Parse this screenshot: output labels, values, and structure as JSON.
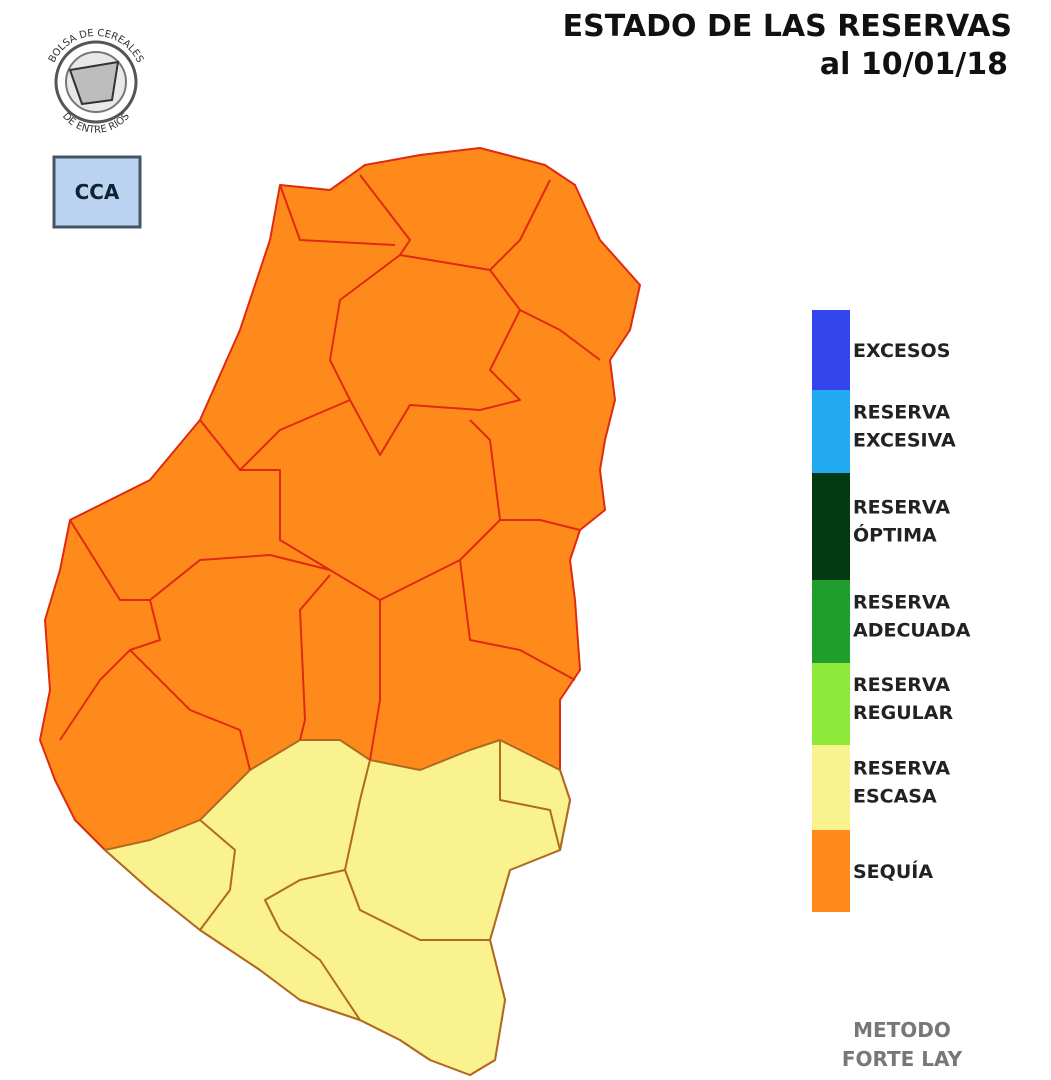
{
  "header": {
    "title": "ESTADO DE LAS RESERVAS",
    "date": "al 10/01/18"
  },
  "logos": {
    "bolsa_top": "BOLSA DE CEREALES",
    "bolsa_bottom": "DE ENTRE RIOS",
    "cca": "CCA"
  },
  "legend": [
    {
      "lines": [
        "EXCESOS"
      ],
      "color": "#3346ee"
    },
    {
      "lines": [
        "RESERVA",
        "EXCESIVA"
      ],
      "color": "#22aaf0"
    },
    {
      "lines": [
        "RESERVA",
        "ÓPTIMA"
      ],
      "color": "#023a12"
    },
    {
      "lines": [
        "RESERVA",
        "ADECUADA"
      ],
      "color": "#1f9e2e"
    },
    {
      "lines": [
        "RESERVA",
        "REGULAR"
      ],
      "color": "#8ee83a"
    },
    {
      "lines": [
        "RESERVA",
        "ESCASA"
      ],
      "color": "#faf28e"
    },
    {
      "lines": [
        "SEQUÍA"
      ],
      "color": "#ff8a1c"
    }
  ],
  "footer": {
    "lines": [
      "METODO",
      "FORTE LAY"
    ]
  }
}
